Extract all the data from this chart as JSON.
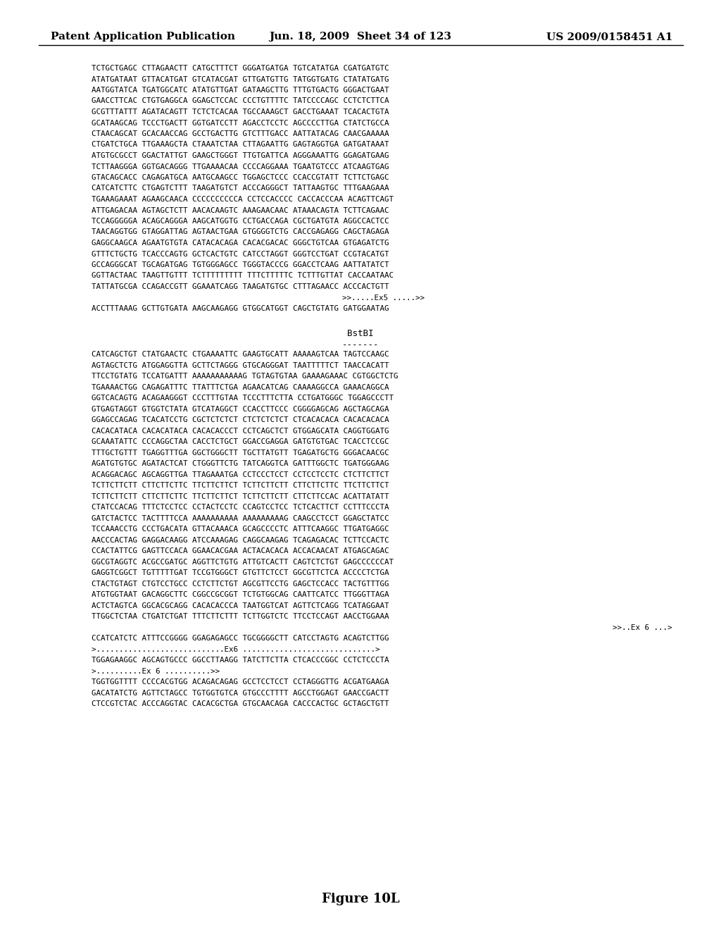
{
  "header_left": "Patent Application Publication",
  "header_mid": "Jun. 18, 2009  Sheet 34 of 123",
  "header_right": "US 2009/0158451 A1",
  "figure_label": "Figure 10L",
  "background_color": "#ffffff",
  "text_color": "#000000",
  "seq_lines_block1": [
    "TCTGCTGAGC CTTAGAACTT CATGCTTTCT GGGATGATGA TGTCATATGA CGATGATGTC",
    "ATATGATAAT GTTACATGAT GTCATACGAT GTTGATGTTG TATGGTGATG CTATATGATG",
    "AATGGTATCA TGATGGCATC ATATGTTGAT GATAAGCTTG TTTGTGACTG GGGACTGAAT",
    "GAACCTTCAC CTGTGAGGCA GGAGCTCCAC CCCTGTTTTC TATCCCCAGC CCTCTCTTCA",
    "GCGTTTATTT AGATACAGTT TCTCTCACAA TGCCAAAGCT GACCTGAAAT TCACACTGTA",
    "GCATAAGCAG TCCCTGACTT GGTGATCCTT AGACCTCCTC AGCCCCTTGA CTATCTGCCA",
    "CTAACAGCAT GCACAACCAG GCCTGACTTG GTCTTTGACC AATTATACAG CAACGAAAAA",
    "CTGATCTGCA TTGAAAGCTA CTAAATCTAA CTTAGAATTG GAGTAGGTGA GATGATAAAT",
    "ATGTGCGCCT GGACTATTGT GAAGCTGGGT TTGTGATTCA AGGGAAATTG GGAGATGAAG",
    "TCTTAAGGGA GGTGACAGGG TTGAAAACAA CCCCAGGAAA TGAATGTCCC ATCAAGTGAG",
    "GTACAGCACC CAGAGATGCA AATGCAAGCC TGGAGCTCCC CCACCGTATT TCTTCTGAGC",
    "CATCATCTTC CTGAGTCTTT TAAGATGTCT ACCCAGGGCT TATTAAGTGC TTTGAAGAAA",
    "TGAAAGAAAT AGAAGCAACA CCCCCCCCCCA CCTCCACCCC CACCACCCAA ACAGTTCAGT",
    "ATTGAGACAA AGTAGCTCTT AACACAAGTC AAAGAACAAC ATAAACAGTA TCTTCAGAAC",
    "TCCAGGGGGA ACAGCAGGGA AAGCATGGTG CCTGACCAGA CGCTGATGTA AGGCCACTCC",
    "TAACAGGTGG GTAGGATTAG AGTAACTGAA GTGGGGTCTG CACCGAGAGG CAGCTAGAGA",
    "GAGGCAAGCA AGAATGTGTA CATACACAGA CACACGACAC GGGCTGTCAA GTGAGATCTG",
    "GTTTCTGCTG TCACCCAGTG GCTCACTGTC CATCCTAGGT GGGTCCTGAT CCGTACATGT",
    "GCCAGGGCAT TGCAGATGAG TGTGGGAGCC TGGGTACCCG GGACCTCAAG AATTATATCT",
    "GGTTACTAAC TAAGTTGTTT TCTTTTTTTTT TTTCTTTTTC TCTTTGTTAT CACCAATAAC",
    "TATTATGCGA CCAGACCGTT GGAAATCAGG TAAGATGTGC CTTTAGAACC ACCCACTGTT"
  ],
  "ex5_line": "          >>.....Ex5 .....>>",
  "last_block1_line": "ACCTTTAAAG GCTTGTGATA AAGCAAGAGG GTGGCATGGT CAGCTGTATG GATGGAATAG",
  "seq_lines_block2": [
    "CATCAGCTGT CTATGAACTC CTGAAAATTC GAAGTGCATT AAAAAGTCAA TAGTCCAAGC",
    "AGTAGCTCTG ATGGAGGTTA GCTTCTAGGG GTGCAGGGAT TAATTTTTCT TAACCACATT",
    "TTCCTGTATG TCCATGATTT AAAAAAAAAAAG TGTAGTGTAA GAAAAGAAAC CGTGGCTCTG",
    "TGAAAACTGG CAGAGATTTC TTATTTCTGA AGAACATCAG CAAAAGGCCA GAAACAGGCA",
    "GGTCACAGTG ACAGAAGGGT CCCTTTGTAA TCCCTTTCTTA CCTGATGGGC TGGAGCCCTT",
    "GTGAGTAGGT GTGGTCTATA GTCATAGGCT CCACCTTCCC CGGGGAGCAG AGCTAGCAGA",
    "GGAGCCAGAG TCACATCCTG CGCTCTCTCT CTCTCTCTCT CTCACACACA CACACACACA",
    "CACACATACA CACACATACA CACACACCCT CCTCAGCTCT GTGGAGCATA CAGGTGGATG",
    "GCAAATATTC CCCAGGCTAA CACCTCTGCT GGACCGAGGA GATGTGTGAC TCACCTCCGC",
    "TTTGCTGTTT TGAGGTTTGA GGCTGGGCTT TGCTTATGTT TGAGATGCTG GGGACAACGC",
    "AGATGTGTGC AGATACTCAT CTGGGTTCTG TATCAGGTCA GATTTGGCTC TGATGGGAAG",
    "ACAGGACAGC AGCAGGTTGA TTAGAAATGA CCTCCCTCCT CCTCCTCCTC CTCTTCTTCT",
    "TCTTCTTCTT CTTCTTCTTC TTCTTCTTCT TCTTCTTCTT CTTCTTCTTC TTCTTCTTCT",
    "TCTTCTTCTT CTTCTTCTTC TTCTTCTTCT TCTTCTTCTT CTTCTTCCAC ACATTATATT",
    "CTATCCACAG TTTCTCCTCC CCTACTCCTC CCAGTCCTCC TCTCACTTCT CCTTTCCCTA",
    "GATCTACTCC TACTTTTCCA AAAAAAAAAA AAAAAAAAAG CAAGCCTCCT GGAGCTATCC",
    "TCCAAACCTG CCCTGACATA GTTACAAACA GCAGCCCCTC ATTTCAAGGC TTGATGAGGC",
    "AACCCACTAG GAGGACAAGG ATCCAAAGAG CAGGCAAGAG TCAGAGACAC TCTTCCACTC",
    "CCACTATTCG GAGTTCCACA GGAACACGAA ACTACACACA ACCACAACAT ATGAGCAGAC",
    "GGCGTAGGTC ACGCCGATGC AGGTTCTGTG ATTGTCACTT CAGTCTCTGT GAGCCCCCCAT",
    "GAGGTCGGCT TGTTTTTGAT TCCGTGGGCT GTGTTCTCCT GGCGTTCTCA ACCCCTCTGA",
    "CTACTGTAGT CTGTCCTGCC CCTCTTCTGT AGCGTTCCTG GAGCTCCACC TACTGTTTGG",
    "ATGTGGTAAT GACAGGCTTC CGGCCGCGGT TCTGTGGCAG CAATTCATCC TTGGGTTAGA",
    "ACTCTAGTCA GGCACGCAGG CACACACCCA TAATGGTCAT AGTTCTCAGG TCATAGGAAT",
    "TTGGCTCTAA CTGATCTGAT TTTCTTCTTT TCTTGGTCTC TTCCTCCAGT AACCTGGAAA"
  ],
  "ex6_hint_right": "                                              >>..Ex 6 ...>",
  "ccatcatctc_line": "CCATCATCTC ATTTCCGGGG GGAGAGAGCC TGCGGGGCTT CATCCTAGTG ACAGTCTTGG",
  "ex6_long_line": ">............................Ex6 .............................>",
  "tggagaaggc_line": "TGGAGAAGGC AGCAGTGCCC GGCCTTAAGG TATCTTCTTA CTCACCCGGC CCTCTCCCTA",
  "ex6_short_line": ">..........Ex 6 ..........>>",
  "tggtggtttt_line": "TGGTGGTTTT CCCCACGTGG ACAGACAGAG GCCTCCTCCT CCTAGGGTTG ACGATGAAGA",
  "gacatatctg_line": "GACATATCTG AGTTCTAGCC TGTGGTGTCA GTGCCCTTTT AGCCTGGAGT GAACCGACTT",
  "ctccgtctac_line": "CTCCGTCTAC ACCCAGGTAC CACACGCTGA GTGCAACAGA CACCCACTGC GCTAGCTGTT"
}
